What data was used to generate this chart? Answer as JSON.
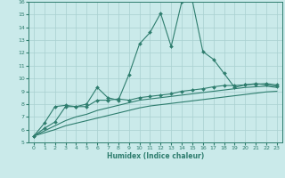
{
  "xlabel": "Humidex (Indice chaleur)",
  "xlim": [
    -0.5,
    23.5
  ],
  "ylim": [
    5,
    16
  ],
  "xticks": [
    0,
    1,
    2,
    3,
    4,
    5,
    6,
    7,
    8,
    9,
    10,
    11,
    12,
    13,
    14,
    15,
    16,
    17,
    18,
    19,
    20,
    21,
    22,
    23
  ],
  "yticks": [
    5,
    6,
    7,
    8,
    9,
    10,
    11,
    12,
    13,
    14,
    15,
    16
  ],
  "bg_color": "#caeaea",
  "grid_color": "#a8d0d0",
  "line_color": "#2e7d6e",
  "line1_x": [
    0,
    1,
    2,
    3,
    4,
    5,
    6,
    7,
    8,
    9,
    10,
    11,
    12,
    13,
    14,
    15,
    16,
    17,
    18,
    19,
    20,
    21,
    22,
    23
  ],
  "line1_y": [
    5.5,
    6.5,
    7.8,
    7.9,
    7.8,
    8.0,
    9.3,
    8.5,
    8.3,
    10.3,
    12.7,
    13.6,
    15.1,
    12.5,
    16.0,
    16.1,
    12.1,
    11.5,
    10.4,
    9.3,
    9.5,
    9.6,
    9.5,
    9.4
  ],
  "line2_x": [
    0,
    1,
    2,
    3,
    4,
    5,
    6,
    7,
    8,
    9,
    10,
    11,
    12,
    13,
    14,
    15,
    16,
    17,
    18,
    19,
    20,
    21,
    22,
    23
  ],
  "line2_y": [
    5.5,
    6.1,
    6.6,
    7.8,
    7.8,
    7.8,
    8.3,
    8.3,
    8.4,
    8.3,
    8.5,
    8.6,
    8.7,
    8.8,
    9.0,
    9.1,
    9.2,
    9.35,
    9.45,
    9.45,
    9.5,
    9.55,
    9.6,
    9.5
  ],
  "line3_x": [
    0,
    1,
    2,
    3,
    4,
    5,
    6,
    7,
    8,
    9,
    10,
    11,
    12,
    13,
    14,
    15,
    16,
    17,
    18,
    19,
    20,
    21,
    22,
    23
  ],
  "line3_y": [
    5.5,
    5.9,
    6.3,
    6.7,
    7.0,
    7.2,
    7.5,
    7.7,
    7.9,
    8.1,
    8.3,
    8.4,
    8.5,
    8.6,
    8.7,
    8.8,
    8.9,
    9.0,
    9.1,
    9.2,
    9.3,
    9.35,
    9.4,
    9.3
  ],
  "line4_x": [
    0,
    1,
    2,
    3,
    4,
    5,
    6,
    7,
    8,
    9,
    10,
    11,
    12,
    13,
    14,
    15,
    16,
    17,
    18,
    19,
    20,
    21,
    22,
    23
  ],
  "line4_y": [
    5.5,
    5.75,
    6.0,
    6.3,
    6.5,
    6.7,
    6.9,
    7.1,
    7.3,
    7.5,
    7.7,
    7.85,
    7.95,
    8.05,
    8.15,
    8.25,
    8.35,
    8.45,
    8.55,
    8.65,
    8.75,
    8.85,
    8.95,
    9.0
  ]
}
